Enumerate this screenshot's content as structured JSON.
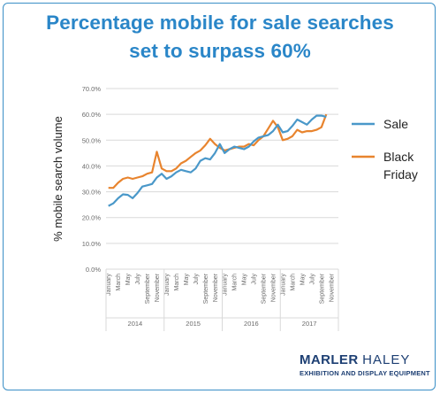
{
  "title_line1": "Percentage mobile for sale searches",
  "title_line2": "set to surpass 60%",
  "logo": {
    "word1": "MARLER",
    "word2": "HALEY",
    "tagline": "EXHIBITION AND DISPLAY EQUIPMENT"
  },
  "colors": {
    "title": "#2a86c8",
    "sale": "#4a98c9",
    "black_friday": "#e8842e",
    "grid": "#d9d9d9"
  },
  "chart_data": {
    "type": "line",
    "ylabel": "% mobile search volume",
    "ylim": [
      0,
      70
    ],
    "yticks": [
      "0.0%",
      "10.0%",
      "20.0%",
      "30.0%",
      "40.0%",
      "50.0%",
      "60.0%",
      "70.0%"
    ],
    "month_labels": [
      "January",
      "March",
      "May",
      "July",
      "September",
      "November"
    ],
    "years": [
      "2014",
      "2015",
      "2016",
      "2017"
    ],
    "x": [
      "2014-01",
      "2014-02",
      "2014-03",
      "2014-04",
      "2014-05",
      "2014-06",
      "2014-07",
      "2014-08",
      "2014-09",
      "2014-10",
      "2014-11",
      "2014-12",
      "2015-01",
      "2015-02",
      "2015-03",
      "2015-04",
      "2015-05",
      "2015-06",
      "2015-07",
      "2015-08",
      "2015-09",
      "2015-10",
      "2015-11",
      "2015-12",
      "2016-01",
      "2016-02",
      "2016-03",
      "2016-04",
      "2016-05",
      "2016-06",
      "2016-07",
      "2016-08",
      "2016-09",
      "2016-10",
      "2016-11",
      "2016-12",
      "2017-01",
      "2017-02",
      "2017-03",
      "2017-04",
      "2017-05",
      "2017-06",
      "2017-07",
      "2017-08",
      "2017-09",
      "2017-10"
    ],
    "series": [
      {
        "name": "Sale",
        "values": [
          24.5,
          25.5,
          27.5,
          29,
          28.8,
          27.5,
          29.5,
          32,
          32.5,
          33,
          35.5,
          37,
          35,
          36,
          37.5,
          38.5,
          38,
          37.5,
          39,
          42,
          43,
          42.5,
          45,
          48.5,
          45,
          46.5,
          47.5,
          47,
          46.5,
          47.5,
          49.5,
          51,
          51.5,
          52,
          53.5,
          56,
          53,
          53.5,
          55.5,
          58,
          57,
          56,
          58,
          59.5,
          59.5,
          59
        ]
      },
      {
        "name": "Black Friday",
        "values": [
          31.5,
          31.5,
          33.5,
          35,
          35.5,
          35,
          35.5,
          36,
          37,
          37.5,
          45.5,
          39,
          38,
          38,
          39,
          41,
          42,
          43.5,
          45,
          46,
          48,
          50.5,
          48.5,
          47,
          46,
          46.5,
          47,
          47.5,
          47.5,
          48.5,
          48,
          50,
          51.5,
          54.5,
          57.5,
          55,
          50,
          50.5,
          51.5,
          54,
          53,
          53.5,
          53.5,
          54,
          55,
          60
        ]
      }
    ]
  }
}
